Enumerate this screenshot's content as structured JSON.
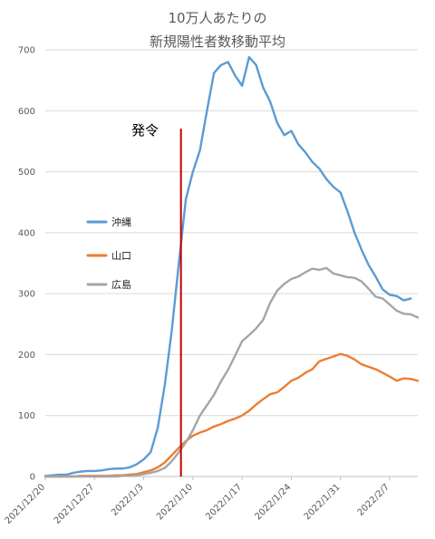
{
  "chart_data": {
    "type": "line",
    "title_lines": [
      "10万人あたりの",
      "新規陽性者数移動平均"
    ],
    "xlabel": "",
    "ylabel": "",
    "ylim": [
      0,
      700
    ],
    "y_ticks": [
      0,
      100,
      200,
      300,
      400,
      500,
      600,
      700
    ],
    "x_tick_labels": [
      "2021/12/20",
      "2021/12/27",
      "2022/1/3",
      "2022/1/10",
      "2022/1/17",
      "2022/1/24",
      "2022/1/31",
      "2022/2/7"
    ],
    "grid": true,
    "legend_placement": "left-middle",
    "annotation": {
      "label": "発令",
      "x_index": 19.3,
      "color": "#c00000"
    },
    "series": [
      {
        "name": "沖縄",
        "color": "#5b9bd5",
        "values": [
          1,
          2,
          3,
          3,
          6,
          8,
          9,
          9,
          10,
          12,
          13,
          13,
          15,
          20,
          28,
          40,
          80,
          150,
          240,
          350,
          455,
          500,
          535,
          600,
          662,
          675,
          680,
          658,
          641,
          688,
          675,
          638,
          615,
          580,
          560,
          567,
          545,
          532,
          516,
          505,
          488,
          475,
          466,
          435,
          400,
          372,
          347,
          328,
          307,
          298,
          296,
          289,
          292
        ]
      },
      {
        "name": "山口",
        "color": "#ed7d31",
        "values": [
          0,
          0,
          0,
          0,
          0,
          1,
          1,
          1,
          1,
          1,
          2,
          2,
          3,
          4,
          7,
          10,
          15,
          23,
          35,
          47,
          58,
          67,
          72,
          76,
          82,
          86,
          91,
          95,
          100,
          108,
          118,
          127,
          135,
          138,
          147,
          157,
          162,
          170,
          176,
          189,
          193,
          197,
          201,
          198,
          192,
          184,
          180,
          176,
          170,
          164,
          157,
          161,
          160,
          157
        ]
      },
      {
        "name": "広島",
        "color": "#a5a5a5",
        "values": [
          0,
          0,
          0,
          0,
          0,
          0,
          0,
          0,
          0,
          0,
          0,
          1,
          1,
          2,
          4,
          6,
          9,
          14,
          25,
          40,
          56,
          76,
          100,
          117,
          134,
          156,
          175,
          198,
          222,
          232,
          243,
          257,
          285,
          305,
          316,
          324,
          328,
          335,
          341,
          339,
          342,
          333,
          330,
          327,
          326,
          320,
          308,
          295,
          292,
          282,
          272,
          267,
          266,
          261
        ]
      }
    ]
  }
}
